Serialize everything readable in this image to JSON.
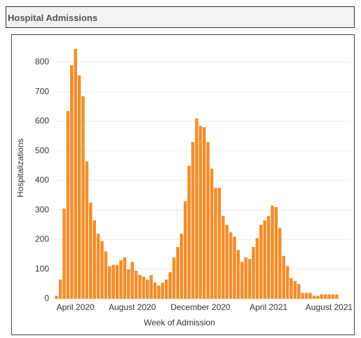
{
  "header": {
    "title": "Hospital Admissions"
  },
  "chart_data": {
    "type": "bar",
    "x_label": "Week of Admission",
    "y_label": "Hospitalizations",
    "categories": [
      null,
      null,
      null,
      null,
      null,
      "April 2020",
      null,
      null,
      null,
      null,
      null,
      null,
      null,
      null,
      null,
      null,
      null,
      null,
      null,
      null,
      "August 2020",
      null,
      null,
      null,
      null,
      null,
      null,
      null,
      null,
      null,
      null,
      null,
      null,
      null,
      null,
      null,
      null,
      null,
      "December 2020",
      null,
      null,
      null,
      null,
      null,
      null,
      null,
      null,
      null,
      null,
      null,
      null,
      null,
      null,
      null,
      null,
      null,
      "April 2021",
      null,
      null,
      null,
      null,
      null,
      null,
      null,
      null,
      null,
      null,
      null,
      null,
      null,
      null,
      null,
      "August 2021",
      null,
      null
    ],
    "values": [
      10,
      65,
      305,
      635,
      790,
      845,
      755,
      685,
      465,
      325,
      265,
      220,
      195,
      160,
      110,
      115,
      115,
      130,
      140,
      100,
      125,
      95,
      80,
      75,
      65,
      80,
      55,
      45,
      55,
      65,
      90,
      140,
      175,
      220,
      330,
      450,
      530,
      610,
      585,
      580,
      530,
      440,
      375,
      375,
      280,
      250,
      225,
      210,
      165,
      125,
      140,
      135,
      175,
      205,
      250,
      265,
      280,
      315,
      310,
      240,
      145,
      110,
      70,
      60,
      50,
      20,
      20,
      20,
      10,
      10,
      15,
      15,
      15,
      15,
      15
    ],
    "color": "#f28e2b",
    "ylim": [
      0,
      880
    ],
    "yticks": [
      0,
      100,
      200,
      300,
      400,
      500,
      600,
      700,
      800
    ],
    "grid": true
  }
}
